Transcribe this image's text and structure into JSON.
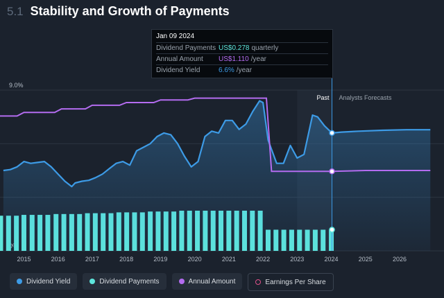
{
  "header": {
    "section_number": "5.1",
    "title": "Stability and Growth of Payments"
  },
  "tooltip": {
    "date": "Jan 09 2024",
    "rows": [
      {
        "label": "Dividend Payments",
        "value": "US$0.278",
        "unit": "quarterly",
        "color": "#5ee6dc"
      },
      {
        "label": "Annual Amount",
        "value": "US$1.110",
        "unit": "/year",
        "color": "#b46cf0"
      },
      {
        "label": "Dividend Yield",
        "value": "6.6%",
        "unit": "/year",
        "color": "#3d9be6"
      }
    ]
  },
  "legend": [
    {
      "label": "Dividend Yield",
      "color": "#3d9be6",
      "style": "filled"
    },
    {
      "label": "Dividend Payments",
      "color": "#5ee6dc",
      "style": "filled"
    },
    {
      "label": "Annual Amount",
      "color": "#b46cf0",
      "style": "filled"
    },
    {
      "label": "Earnings Per Share",
      "color": "#e0508a",
      "style": "outline"
    }
  ],
  "chart_data": {
    "type": "line",
    "ylim": [
      0,
      9.0
    ],
    "y_ticks": [
      "9.0%",
      "0%"
    ],
    "x_ticks": [
      "2015",
      "2016",
      "2017",
      "2018",
      "2019",
      "2020",
      "2021",
      "2022",
      "2023",
      "2024",
      "2025",
      "2026"
    ],
    "xlim": [
      2014.3,
      2027.3
    ],
    "divider": {
      "x": 2024.02,
      "past_label": "Past",
      "forecast_label": "Analysts Forecasts"
    },
    "colors": {
      "yield": "#3d9be6",
      "payments": "#5ee6dc",
      "annual": "#b46cf0"
    },
    "series": [
      {
        "name": "Dividend Yield",
        "unit": "%",
        "x": [
          2014.4,
          2014.6,
          2014.8,
          2015.0,
          2015.2,
          2015.4,
          2015.6,
          2015.8,
          2016.0,
          2016.2,
          2016.4,
          2016.5,
          2016.7,
          2016.9,
          2017.1,
          2017.3,
          2017.5,
          2017.7,
          2017.9,
          2018.1,
          2018.3,
          2018.5,
          2018.7,
          2018.9,
          2019.1,
          2019.3,
          2019.5,
          2019.7,
          2019.9,
          2020.1,
          2020.3,
          2020.5,
          2020.7,
          2020.9,
          2021.1,
          2021.3,
          2021.5,
          2021.7,
          2021.9,
          2022.0,
          2022.15,
          2022.4,
          2022.6,
          2022.8,
          2023.0,
          2023.2,
          2023.45,
          2023.6,
          2023.8,
          2024.02,
          2024.3,
          2024.8,
          2025.5,
          2026.2,
          2026.9
        ],
        "values": [
          4.5,
          4.55,
          4.7,
          5.0,
          4.9,
          4.95,
          5.0,
          4.7,
          4.3,
          3.9,
          3.6,
          3.8,
          3.9,
          3.95,
          4.1,
          4.3,
          4.6,
          4.9,
          5.0,
          4.8,
          5.6,
          5.8,
          6.0,
          6.4,
          6.6,
          6.5,
          6.0,
          5.3,
          4.7,
          5.0,
          6.4,
          6.7,
          6.6,
          7.3,
          7.3,
          6.8,
          7.1,
          7.8,
          8.4,
          8.3,
          6.2,
          4.9,
          4.9,
          5.9,
          5.2,
          5.4,
          7.6,
          7.5,
          7.0,
          6.6,
          6.65,
          6.7,
          6.75,
          6.78,
          6.78
        ]
      },
      {
        "name": "Annual Amount",
        "unit": "%",
        "x": [
          2014.3,
          2014.8,
          2015.0,
          2015.9,
          2016.1,
          2016.8,
          2017.0,
          2017.8,
          2018.0,
          2018.8,
          2019.0,
          2019.8,
          2020.0,
          2020.8,
          2021.0,
          2021.8,
          2022.1,
          2022.25,
          2023.0,
          2024.02,
          2025.0,
          2026.9
        ],
        "values": [
          7.55,
          7.55,
          7.75,
          7.75,
          7.95,
          7.95,
          8.15,
          8.15,
          8.3,
          8.3,
          8.45,
          8.45,
          8.55,
          8.55,
          8.55,
          8.55,
          8.55,
          4.45,
          4.45,
          4.45,
          4.5,
          4.5
        ]
      },
      {
        "name": "Dividend Payments",
        "unit": "US$",
        "type": "bar",
        "x": [
          2014.32,
          2014.55,
          2014.78,
          2015.0,
          2015.24,
          2015.47,
          2015.7,
          2015.94,
          2016.17,
          2016.4,
          2016.63,
          2016.86,
          2017.09,
          2017.32,
          2017.55,
          2017.78,
          2018.01,
          2018.24,
          2018.47,
          2018.7,
          2018.93,
          2019.16,
          2019.39,
          2019.62,
          2019.85,
          2020.08,
          2020.31,
          2020.54,
          2020.77,
          2021.0,
          2021.23,
          2021.46,
          2021.69,
          2021.92,
          2022.15,
          2022.38,
          2022.61,
          2022.84,
          2023.07,
          2023.3,
          2023.53,
          2023.76,
          2024.0
        ],
        "values": [
          0.462,
          0.462,
          0.462,
          0.473,
          0.473,
          0.473,
          0.473,
          0.484,
          0.484,
          0.484,
          0.484,
          0.495,
          0.495,
          0.495,
          0.495,
          0.506,
          0.506,
          0.506,
          0.506,
          0.517,
          0.517,
          0.517,
          0.517,
          0.528,
          0.528,
          0.528,
          0.528,
          0.528,
          0.528,
          0.528,
          0.528,
          0.528,
          0.528,
          0.528,
          0.278,
          0.278,
          0.278,
          0.278,
          0.278,
          0.278,
          0.278,
          0.278,
          0.278
        ]
      }
    ],
    "hover_points": [
      {
        "series": "Dividend Yield",
        "x": 2024.02,
        "value": 6.6
      },
      {
        "series": "Annual Amount",
        "x": 2024.02,
        "value": 4.45
      },
      {
        "series": "Dividend Payments",
        "x": 2024.02,
        "value": 0.278
      }
    ]
  }
}
